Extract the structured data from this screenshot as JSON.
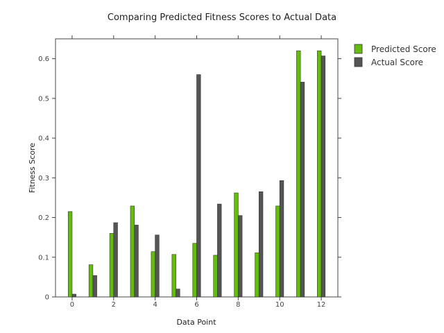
{
  "chart_data": {
    "type": "bar",
    "title": "Comparing Predicted Fitness Scores to Actual Data",
    "xlabel": "Data Point",
    "ylabel": "Fitness Score",
    "x": [
      0,
      1,
      2,
      3,
      4,
      5,
      6,
      7,
      8,
      9,
      10,
      11,
      12
    ],
    "xlim": [
      -0.8,
      12.8
    ],
    "ylim": [
      0,
      0.65
    ],
    "xticks": [
      0,
      2,
      4,
      6,
      8,
      10,
      12
    ],
    "yticks": [
      0,
      0.1,
      0.2,
      0.3,
      0.4,
      0.5,
      0.6
    ],
    "ytick_labels": [
      "0",
      "0.1",
      "0.2",
      "0.3",
      "0.4",
      "0.5",
      "0.6"
    ],
    "grid": false,
    "legend_position": "top-right",
    "series": [
      {
        "name": "Predicted Score",
        "color": "#66bb11",
        "values": [
          0.215,
          0.081,
          0.16,
          0.229,
          0.114,
          0.107,
          0.135,
          0.105,
          0.262,
          0.111,
          0.229,
          0.62,
          0.62
        ]
      },
      {
        "name": "Actual Score",
        "color": "#555555",
        "values": [
          0.007,
          0.054,
          0.187,
          0.181,
          0.156,
          0.02,
          0.56,
          0.234,
          0.205,
          0.265,
          0.293,
          0.541,
          0.607
        ]
      }
    ]
  }
}
